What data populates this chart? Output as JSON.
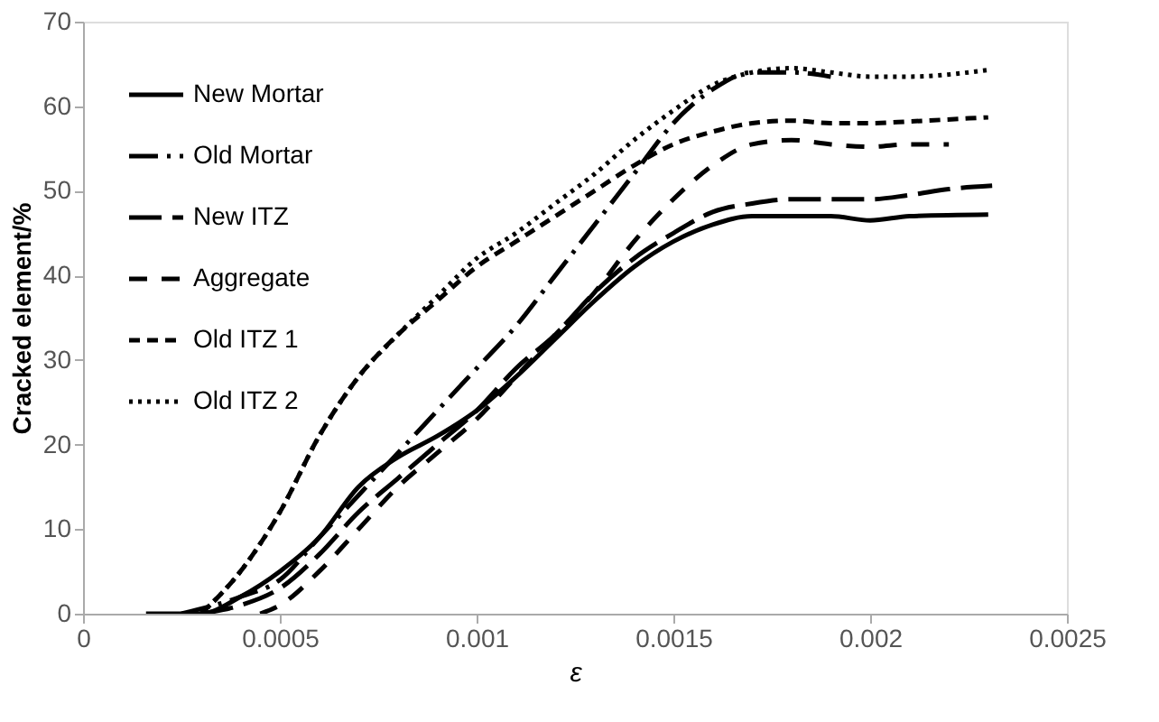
{
  "chart_data": {
    "type": "line",
    "xlabel": "ε",
    "ylabel": "Cracked element/%",
    "xlim": [
      0,
      0.0025
    ],
    "xticks": [
      0,
      0.0005,
      0.001,
      0.0015,
      0.002,
      0.0025
    ],
    "ylim": [
      0,
      70
    ],
    "yticks": [
      0,
      10,
      20,
      30,
      40,
      50,
      60,
      70
    ],
    "grid": false,
    "legend": "top left",
    "marker": "none",
    "series": [
      {
        "name": "New Mortar",
        "color": "#000000",
        "line_style": "solid",
        "x": [
          0.00016,
          0.0003,
          0.0004,
          0.0005,
          0.0006,
          0.0007,
          0.0008,
          0.0009,
          0.001,
          0.0011,
          0.0012,
          0.0013,
          0.0014,
          0.0015,
          0.0016,
          0.0017,
          0.0018,
          0.0019,
          0.002,
          0.0021,
          0.0023
        ],
        "values": [
          0,
          0,
          2,
          5,
          9,
          15,
          18.5,
          21,
          24,
          28,
          32.5,
          37,
          41,
          44,
          46,
          47,
          47,
          47,
          46.5,
          47,
          47.2
        ]
      },
      {
        "name": "Old Mortar",
        "color": "#000000",
        "line_style": "dashed",
        "x": [
          0.00025,
          0.0004,
          0.0005,
          0.0006,
          0.0007,
          0.0008,
          0.0009,
          0.001,
          0.0011,
          0.0012,
          0.0013,
          0.0014,
          0.0015,
          0.0016,
          0.0017,
          0.0018,
          0.0019
        ],
        "values": [
          0,
          2,
          4,
          9,
          14,
          19,
          24,
          29,
          34,
          40,
          46,
          52,
          58,
          62,
          64,
          64,
          63.5
        ]
      },
      {
        "name": "New ITZ",
        "color": "#000000",
        "line_style": "dashed",
        "x": [
          0.0003,
          0.0004,
          0.0005,
          0.0006,
          0.0007,
          0.0008,
          0.0009,
          0.001,
          0.0011,
          0.0012,
          0.0013,
          0.0014,
          0.0015,
          0.0016,
          0.0017,
          0.0018,
          0.0019,
          0.002,
          0.0021,
          0.0022,
          0.00231
        ],
        "values": [
          0,
          1,
          3,
          7,
          12,
          16,
          20,
          24,
          29,
          33,
          38,
          42,
          45,
          47.5,
          48.5,
          49,
          49,
          49,
          49.5,
          50.2,
          50.6
        ]
      },
      {
        "name": "Aggregate",
        "color": "#000000",
        "line_style": "dashed",
        "x": [
          0.00045,
          0.0005,
          0.0006,
          0.0007,
          0.0008,
          0.0009,
          0.001,
          0.0011,
          0.0012,
          0.0013,
          0.0014,
          0.0015,
          0.0016,
          0.0017,
          0.0018,
          0.0019,
          0.002,
          0.0021,
          0.0022
        ],
        "values": [
          0,
          1,
          5,
          10,
          15,
          19,
          23,
          28,
          33,
          38,
          44,
          49,
          53,
          55.5,
          56,
          55.5,
          55.2,
          55.5,
          55.5
        ]
      },
      {
        "name": "Old ITZ 1",
        "color": "#000000",
        "line_style": "dashed",
        "x": [
          0.0003,
          0.0004,
          0.0005,
          0.0006,
          0.0007,
          0.0008,
          0.0009,
          0.001,
          0.0011,
          0.0012,
          0.0013,
          0.0014,
          0.0015,
          0.0016,
          0.0017,
          0.0018,
          0.0019,
          0.002,
          0.0021,
          0.0023
        ],
        "values": [
          0,
          5,
          12,
          21,
          28,
          33,
          37,
          41,
          44,
          47,
          50,
          53,
          55.5,
          57,
          58,
          58.3,
          58,
          58,
          58.2,
          58.7
        ]
      },
      {
        "name": "Old ITZ 2",
        "color": "#000000",
        "line_style": "dotted",
        "x": [
          0.0003,
          0.0004,
          0.0005,
          0.0006,
          0.0007,
          0.0008,
          0.0009,
          0.001,
          0.0011,
          0.0012,
          0.0013,
          0.0014,
          0.0015,
          0.0016,
          0.0017,
          0.0018,
          0.0019,
          0.002,
          0.0021,
          0.0023
        ],
        "values": [
          0,
          5,
          12,
          21,
          28,
          33,
          37.5,
          42,
          45,
          48.5,
          52,
          56,
          59.5,
          62.5,
          64,
          64.5,
          64,
          63.5,
          63.5,
          64.3
        ]
      }
    ]
  }
}
